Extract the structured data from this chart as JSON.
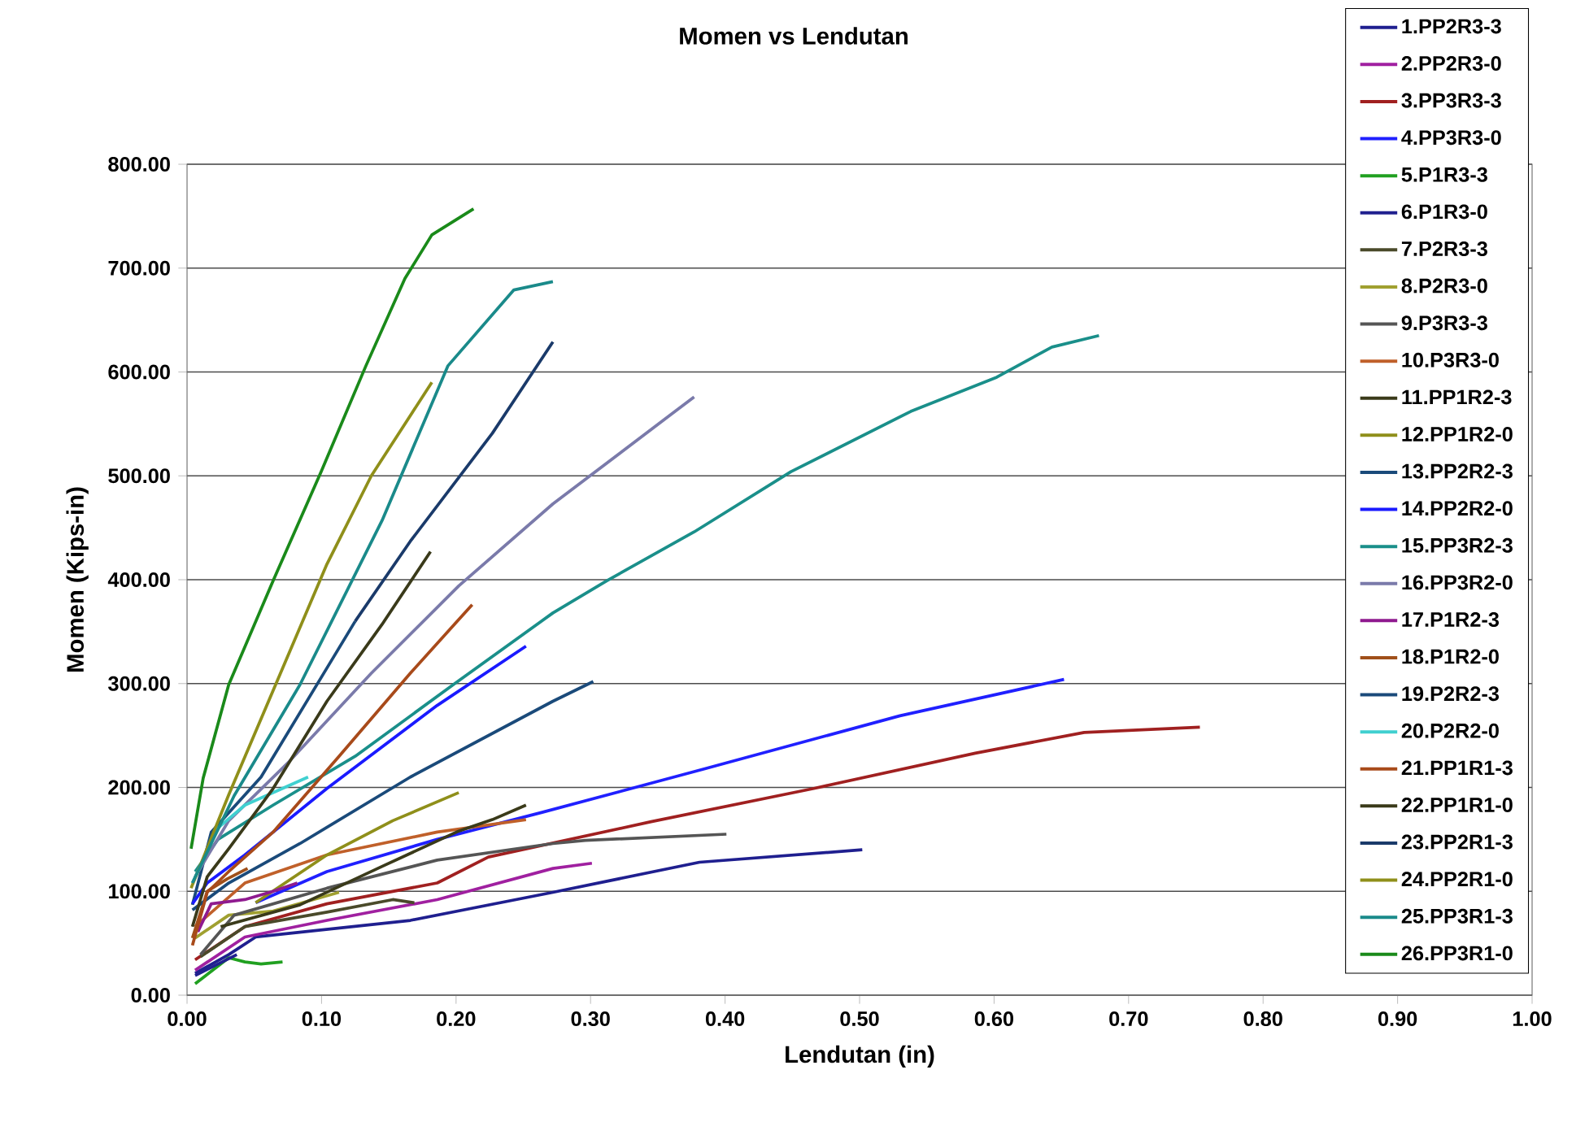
{
  "chart_data": {
    "type": "line",
    "title": "Momen vs Lendutan",
    "xlabel": "Lendutan (in)",
    "ylabel": "Momen (Kips-in)",
    "xlim": [
      0,
      1
    ],
    "ylim": [
      0,
      800
    ],
    "xticks": [
      {
        "value": 0,
        "label": "0.00"
      },
      {
        "value": 0.1,
        "label": "0.10"
      },
      {
        "value": 0.2,
        "label": "0.20"
      },
      {
        "value": 0.3,
        "label": "0.30"
      },
      {
        "value": 0.4,
        "label": "0.40"
      },
      {
        "value": 0.5,
        "label": "0.50"
      },
      {
        "value": 0.6,
        "label": "0.60"
      },
      {
        "value": 0.7,
        "label": "0.70"
      },
      {
        "value": 0.8,
        "label": "0.80"
      },
      {
        "value": 0.9,
        "label": "0.90"
      },
      {
        "value": 1,
        "label": "1.00"
      }
    ],
    "yticks": [
      {
        "value": 0,
        "label": "0.00"
      },
      {
        "value": 100,
        "label": "100.00"
      },
      {
        "value": 200,
        "label": "200.00"
      },
      {
        "value": 300,
        "label": "300.00"
      },
      {
        "value": 400,
        "label": "400.00"
      },
      {
        "value": 500,
        "label": "500.00"
      },
      {
        "value": 600,
        "label": "600.00"
      },
      {
        "value": 700,
        "label": "700.00"
      },
      {
        "value": 800,
        "label": "800.00"
      }
    ],
    "grid": "y",
    "legend": "top right",
    "series": [
      {
        "name": "1.PP2R3-3",
        "color": "#1f1f8f",
        "x": [
          0.006,
          0.031,
          0.051,
          0.166,
          0.272,
          0.381,
          0.502
        ],
        "values": [
          21,
          39,
          56,
          72,
          99,
          128,
          140
        ]
      },
      {
        "name": "2.PP2R3-0",
        "color": "#a020a0",
        "x": [
          0.006,
          0.043,
          0.104,
          0.186,
          0.272,
          0.301
        ],
        "values": [
          24,
          56,
          72,
          92,
          122,
          127
        ]
      },
      {
        "name": "3.PP3R3-3",
        "color": "#a02020",
        "x": [
          0.006,
          0.043,
          0.104,
          0.186,
          0.224,
          0.345,
          0.466,
          0.586,
          0.667,
          0.753
        ],
        "values": [
          34,
          66,
          88,
          108,
          133,
          167,
          199,
          233,
          253,
          258
        ]
      },
      {
        "name": "4.PP3R3-0",
        "color": "#2020ff",
        "x": [
          0.051,
          0.104,
          0.186,
          0.264,
          0.385,
          0.53,
          0.652
        ],
        "values": [
          89,
          119,
          150,
          176,
          218,
          269,
          304
        ]
      },
      {
        "name": "5.P1R3-3",
        "color": "#20a020",
        "x": [
          0.006,
          0.031,
          0.043,
          0.055,
          0.071
        ],
        "values": [
          11,
          36,
          32,
          30,
          32
        ]
      },
      {
        "name": "6.P1R3-0",
        "color": "#20208f",
        "x": [
          0.006,
          0.037
        ],
        "values": [
          19,
          39
        ]
      },
      {
        "name": "7.P2R3-3",
        "color": "#4a4a2a",
        "x": [
          0.01,
          0.043,
          0.104,
          0.153,
          0.169
        ],
        "values": [
          37,
          66,
          80,
          92,
          89
        ]
      },
      {
        "name": "8.P2R3-0",
        "color": "#a0a030",
        "x": [
          0.006,
          0.031,
          0.064,
          0.113
        ],
        "values": [
          55,
          77,
          81,
          99
        ]
      },
      {
        "name": "9.P3R3-3",
        "color": "#555555",
        "x": [
          0.01,
          0.035,
          0.104,
          0.186,
          0.272,
          0.296,
          0.401
        ],
        "values": [
          39,
          77,
          103,
          130,
          146,
          149,
          155
        ]
      },
      {
        "name": "10.P3R3-0",
        "color": "#c0602a",
        "x": [
          0.006,
          0.043,
          0.104,
          0.186,
          0.252
        ],
        "values": [
          66,
          108,
          135,
          157,
          169
        ]
      },
      {
        "name": "11.PP1R2-3",
        "color": "#3a3a1a",
        "x": [
          0.025,
          0.084,
          0.145,
          0.202,
          0.227,
          0.252
        ],
        "values": [
          66,
          87,
          124,
          158,
          169,
          183
        ]
      },
      {
        "name": "12.PP1R2-0",
        "color": "#8f8f1a",
        "x": [
          0.051,
          0.104,
          0.153,
          0.202
        ],
        "values": [
          89,
          135,
          168,
          195
        ]
      },
      {
        "name": "13.PP2R2-3",
        "color": "#1a4a7a",
        "x": [
          0.004,
          0.018,
          0.055,
          0.104,
          0.125
        ],
        "values": [
          87,
          157,
          210,
          315,
          360
        ]
      },
      {
        "name": "14.PP2R2-0",
        "color": "#1a1aff",
        "x": [
          0.004,
          0.015,
          0.043,
          0.104,
          0.186,
          0.252
        ],
        "values": [
          88,
          108,
          135,
          199,
          279,
          336
        ]
      },
      {
        "name": "15.PP3R2-3",
        "color": "#1a8f8a",
        "x": [
          0.006,
          0.023,
          0.064,
          0.125,
          0.198,
          0.272,
          0.312,
          0.377,
          0.449,
          0.538,
          0.602,
          0.643,
          0.678
        ],
        "values": [
          119,
          150,
          183,
          230,
          299,
          368,
          399,
          446,
          504,
          562,
          595,
          624,
          635
        ]
      },
      {
        "name": "16.PP3R2-0",
        "color": "#7a7aaa",
        "x": [
          0.006,
          0.031,
          0.076,
          0.137,
          0.202,
          0.272,
          0.377
        ],
        "values": [
          114,
          168,
          225,
          310,
          394,
          473,
          576
        ]
      },
      {
        "name": "17.P1R2-3",
        "color": "#8f1a8f",
        "x": [
          0.008,
          0.018,
          0.043,
          0.064,
          0.082
        ],
        "values": [
          61,
          88,
          92,
          100,
          108
        ]
      },
      {
        "name": "18.P1R2-0",
        "color": "#a0501a",
        "x": [
          0.004,
          0.015,
          0.03,
          0.045
        ],
        "values": [
          55,
          100,
          112,
          122
        ]
      },
      {
        "name": "19.P2R2-3",
        "color": "#1a4a7a",
        "x": [
          0.004,
          0.031,
          0.084,
          0.166,
          0.272,
          0.302
        ],
        "values": [
          82,
          108,
          146,
          210,
          283,
          302
        ]
      },
      {
        "name": "20.P2R2-0",
        "color": "#40d0d0",
        "x": [
          0.004,
          0.023,
          0.043,
          0.09
        ],
        "values": [
          108,
          161,
          183,
          210
        ]
      },
      {
        "name": "21.PP1R1-3",
        "color": "#a84a1a",
        "x": [
          0.004,
          0.015,
          0.031,
          0.064,
          0.113,
          0.166,
          0.212
        ],
        "values": [
          48,
          99,
          119,
          157,
          230,
          310,
          376
        ]
      },
      {
        "name": "22.PP1R1-0",
        "color": "#3a3a1a",
        "x": [
          0.004,
          0.015,
          0.031,
          0.064,
          0.104,
          0.145,
          0.181
        ],
        "values": [
          66,
          114,
          141,
          199,
          283,
          357,
          427
        ]
      },
      {
        "name": "23.PP2R1-3",
        "color": "#1a3a6a",
        "x": [
          0.125,
          0.166,
          0.227,
          0.272
        ],
        "values": [
          360,
          437,
          541,
          629
        ]
      },
      {
        "name": "24.PP2R1-0",
        "color": "#8f8f1a",
        "x": [
          0.003,
          0.031,
          0.104,
          0.137,
          0.182
        ],
        "values": [
          103,
          193,
          415,
          500,
          590
        ]
      },
      {
        "name": "25.PP3R1-3",
        "color": "#1a8a8a",
        "x": [
          0.004,
          0.018,
          0.035,
          0.084,
          0.145,
          0.194,
          0.243,
          0.272
        ],
        "values": [
          108,
          146,
          192,
          299,
          457,
          606,
          679,
          687
        ]
      },
      {
        "name": "26.PP3R1-0",
        "color": "#1a8a1a",
        "x": [
          0.003,
          0.012,
          0.031,
          0.064,
          0.1,
          0.133,
          0.162,
          0.182,
          0.213
        ],
        "values": [
          141,
          209,
          299,
          399,
          505,
          606,
          690,
          732,
          757
        ]
      }
    ]
  }
}
